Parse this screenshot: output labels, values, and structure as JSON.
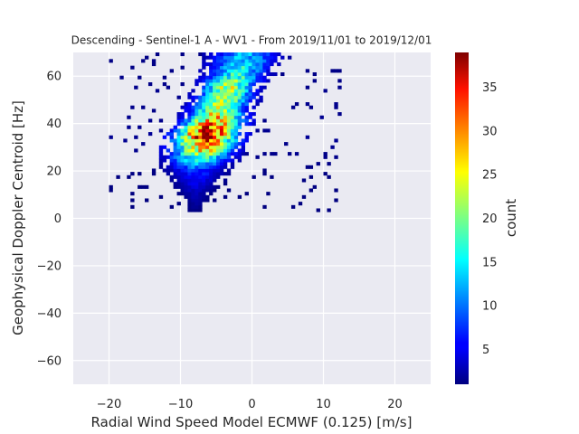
{
  "chart_data": {
    "type": "heatmap",
    "title": "Descending - Sentinel-1 A - WV1 - From 2019/11/01 to 2019/12/01",
    "xlabel": "Radial Wind Speed Model ECMWF (0.125) [m/s]",
    "ylabel": "Geophysical Doppler Centroid [Hz]",
    "xlim": [
      -25,
      25
    ],
    "ylim": [
      -70,
      70
    ],
    "xticks": [
      -20,
      -10,
      0,
      10,
      20
    ],
    "xtick_labels": [
      "−20",
      "−10",
      "0",
      "10",
      "20"
    ],
    "yticks": [
      -60,
      -40,
      -20,
      0,
      20,
      40,
      60
    ],
    "ytick_labels": [
      "−60",
      "−40",
      "−20",
      "0",
      "20",
      "40",
      "60"
    ],
    "grid": true,
    "colorbar": {
      "label": "count",
      "colormap": "jet",
      "range": [
        1,
        39
      ],
      "ticks": [
        5,
        10,
        15,
        20,
        25,
        30,
        35
      ],
      "tick_labels": [
        "5",
        "10",
        "15",
        "20",
        "25",
        "30",
        "35"
      ]
    },
    "distribution": {
      "description_points": [
        {
          "y": 2,
          "x_center": -8.5,
          "x_halfwidth": 0.5,
          "peak": 1
        },
        {
          "y": 5,
          "x_center": -8.0,
          "x_halfwidth": 0.8,
          "peak": 2
        },
        {
          "y": 10,
          "x_center": -8.2,
          "x_halfwidth": 1.5,
          "peak": 3
        },
        {
          "y": 15,
          "x_center": -8.0,
          "x_halfwidth": 2.5,
          "peak": 5
        },
        {
          "y": 20,
          "x_center": -8.0,
          "x_halfwidth": 3.2,
          "peak": 8
        },
        {
          "y": 25,
          "x_center": -7.5,
          "x_halfwidth": 3.7,
          "peak": 18
        },
        {
          "y": 30,
          "x_center": -7.0,
          "x_halfwidth": 3.8,
          "peak": 28
        },
        {
          "y": 35,
          "x_center": -6.5,
          "x_halfwidth": 3.8,
          "peak": 36
        },
        {
          "y": 40,
          "x_center": -5.5,
          "x_halfwidth": 3.5,
          "peak": 30
        },
        {
          "y": 45,
          "x_center": -5.0,
          "x_halfwidth": 3.3,
          "peak": 22
        },
        {
          "y": 50,
          "x_center": -4.0,
          "x_halfwidth": 3.3,
          "peak": 20
        },
        {
          "y": 55,
          "x_center": -3.5,
          "x_halfwidth": 3.2,
          "peak": 22
        },
        {
          "y": 60,
          "x_center": -2.5,
          "x_halfwidth": 3.5,
          "peak": 16
        },
        {
          "y": 65,
          "x_center": -1.5,
          "x_halfwidth": 3.8,
          "peak": 14
        },
        {
          "y": 69,
          "x_center": -1.0,
          "x_halfwidth": 4.0,
          "peak": 12
        }
      ],
      "bin_size": [
        0.5,
        1.4
      ]
    }
  }
}
